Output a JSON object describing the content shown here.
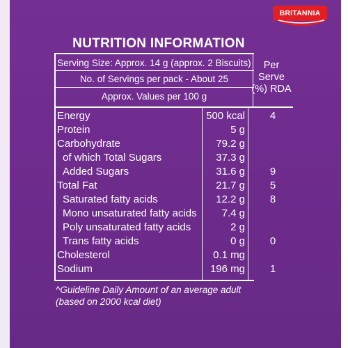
{
  "brand": {
    "logo_text": "BRITANNIA"
  },
  "title": "NUTRITION INFORMATION",
  "header": {
    "serving_size": "Serving Size: Approx. 14 g (approx. 2 Biscuits)",
    "servings_per_pack": "No. of Servings per pack - About 25",
    "values_per": "Approx. Values per 100 g",
    "per_serve_line1": "Per",
    "per_serve_line2": "Serve",
    "per_serve_line3": "(%) RDA"
  },
  "rows": [
    {
      "name": "Energy",
      "value": "500 kcal",
      "rda": "4"
    },
    {
      "name": "Protein",
      "value": "5 g",
      "rda": ""
    },
    {
      "name": "Carbohydrate",
      "value": "79.2 g",
      "rda": ""
    },
    {
      "name": "of which Total Sugars",
      "value": "37.3 g",
      "rda": ""
    },
    {
      "name": "Added Sugars",
      "value": "31.6 g",
      "rda": "9"
    },
    {
      "name": "Total Fat",
      "value": "21.7 g",
      "rda": "5"
    },
    {
      "name": "Saturated fatty acids",
      "value": "12.2 g",
      "rda": "8"
    },
    {
      "name": "Mono unsaturated fatty acids",
      "value": "7.4 g",
      "rda": ""
    },
    {
      "name": "Poly unsaturated fatty acids",
      "value": "2 g",
      "rda": ""
    },
    {
      "name": "Trans fatty acids",
      "value": "0 g",
      "rda": "0"
    },
    {
      "name": "Cholesterol",
      "value": "0.1 mg",
      "rda": ""
    },
    {
      "name": "Sodium",
      "value": "196 mg",
      "rda": "1"
    }
  ],
  "footnote": {
    "line1": "^Guideline Daily Amount of an average adult",
    "line2": "(based on 2000 kcal diet)"
  },
  "colors": {
    "background": "#6f2c8f",
    "text": "#ffffff",
    "logo_red": "#e31e24"
  }
}
